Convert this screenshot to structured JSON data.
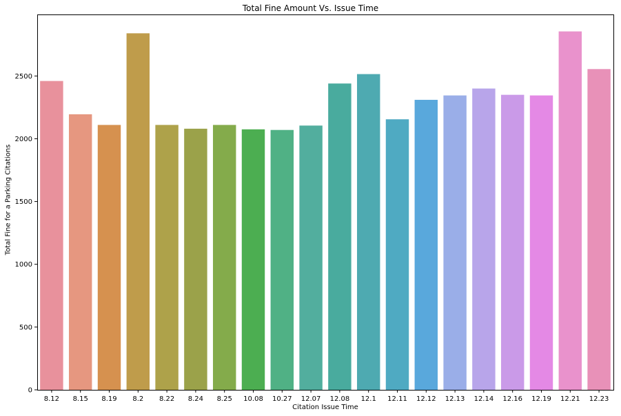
{
  "chart_data": {
    "type": "bar",
    "title": "Total Fine Amount Vs. Issue Time",
    "xlabel": "Citation Issue Time",
    "ylabel": "Total Fine for a Parking Citations",
    "categories": [
      "8.12",
      "8.15",
      "8.19",
      "8.2",
      "8.22",
      "8.24",
      "8.25",
      "10.08",
      "10.27",
      "12.07",
      "12.08",
      "12.1",
      "12.11",
      "12.12",
      "12.13",
      "12.14",
      "12.16",
      "12.19",
      "12.21",
      "12.23"
    ],
    "values": [
      2460,
      2195,
      2110,
      2840,
      2110,
      2080,
      2110,
      2075,
      2070,
      2105,
      2440,
      2515,
      2155,
      2310,
      2345,
      2400,
      2350,
      2345,
      2855,
      2555
    ],
    "colors": [
      "#e8919c",
      "#e69780",
      "#d6914f",
      "#bf9c4b",
      "#aea24a",
      "#9ba24a",
      "#84ab4b",
      "#4cae51",
      "#50b185",
      "#52ae9e",
      "#49ab9e",
      "#4eaab1",
      "#4faac2",
      "#59a8dc",
      "#9aaee8",
      "#b8a5ea",
      "#ca9ae8",
      "#e489e5",
      "#e992cc",
      "#e891b8"
    ],
    "yticks": [
      0,
      500,
      1000,
      1500,
      2000,
      2500
    ],
    "ylim": [
      0,
      2990
    ],
    "grid": false
  }
}
